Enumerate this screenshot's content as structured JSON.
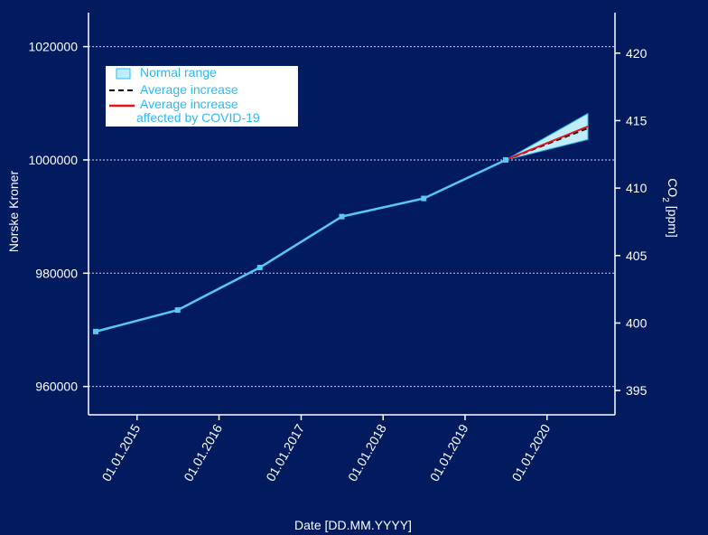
{
  "chart_data": {
    "type": "line",
    "xlabel": "Date [DD.MM.YYYY]",
    "ylabel_left": "Norske Kroner",
    "ylabel_right_main": "CO",
    "ylabel_right_sub": "2",
    "ylabel_right_unit": "[ppm]",
    "x_tick_labels": [
      "01.01.2015",
      "01.01.2016",
      "01.01.2017",
      "01.01.2018",
      "01.01.2019",
      "01.01.2020"
    ],
    "left_axis": {
      "ticks": [
        960000,
        980000,
        1000000,
        1020000
      ],
      "ylim": [
        955000,
        1026000
      ]
    },
    "right_axis": {
      "ticks": [
        395,
        400,
        405,
        410,
        415,
        420
      ],
      "ylim": [
        393.2,
        423.0
      ]
    },
    "grid": true,
    "legend_position": "top-left",
    "legend": [
      {
        "key": "normal_range",
        "lines": [
          "Normal range"
        ]
      },
      {
        "key": "avg",
        "lines": [
          "Average increase"
        ]
      },
      {
        "key": "covid",
        "lines": [
          "Average increase",
          "affected by COVID-19"
        ]
      }
    ],
    "series": [
      {
        "key": "main",
        "color": "#59c8f5",
        "points": [
          {
            "x": "2014-07-01",
            "y": 969700
          },
          {
            "x": "2015-07-01",
            "y": 973500
          },
          {
            "x": "2016-07-01",
            "y": 981000
          },
          {
            "x": "2017-07-01",
            "y": 990000
          },
          {
            "x": "2018-07-01",
            "y": 993200
          },
          {
            "x": "2019-07-01",
            "y": 1000000
          }
        ]
      },
      {
        "key": "avg",
        "color": "#000000",
        "dashed": true,
        "points": [
          {
            "x": "2019-07-01",
            "y": 1000000
          },
          {
            "x": "2020-07-01",
            "y": 1005600
          }
        ]
      },
      {
        "key": "covid",
        "color": "#e8101a",
        "points": [
          {
            "x": "2019-07-01",
            "y": 1000000
          },
          {
            "x": "2020-07-01",
            "y": 1005900
          }
        ]
      }
    ],
    "normal_range": {
      "color": "#bfeefa",
      "border": "#2fb8f0",
      "points": [
        {
          "x": "2019-07-01",
          "low": 1000000,
          "high": 1000000
        },
        {
          "x": "2020-07-01",
          "low": 1003600,
          "high": 1008200
        }
      ]
    }
  }
}
